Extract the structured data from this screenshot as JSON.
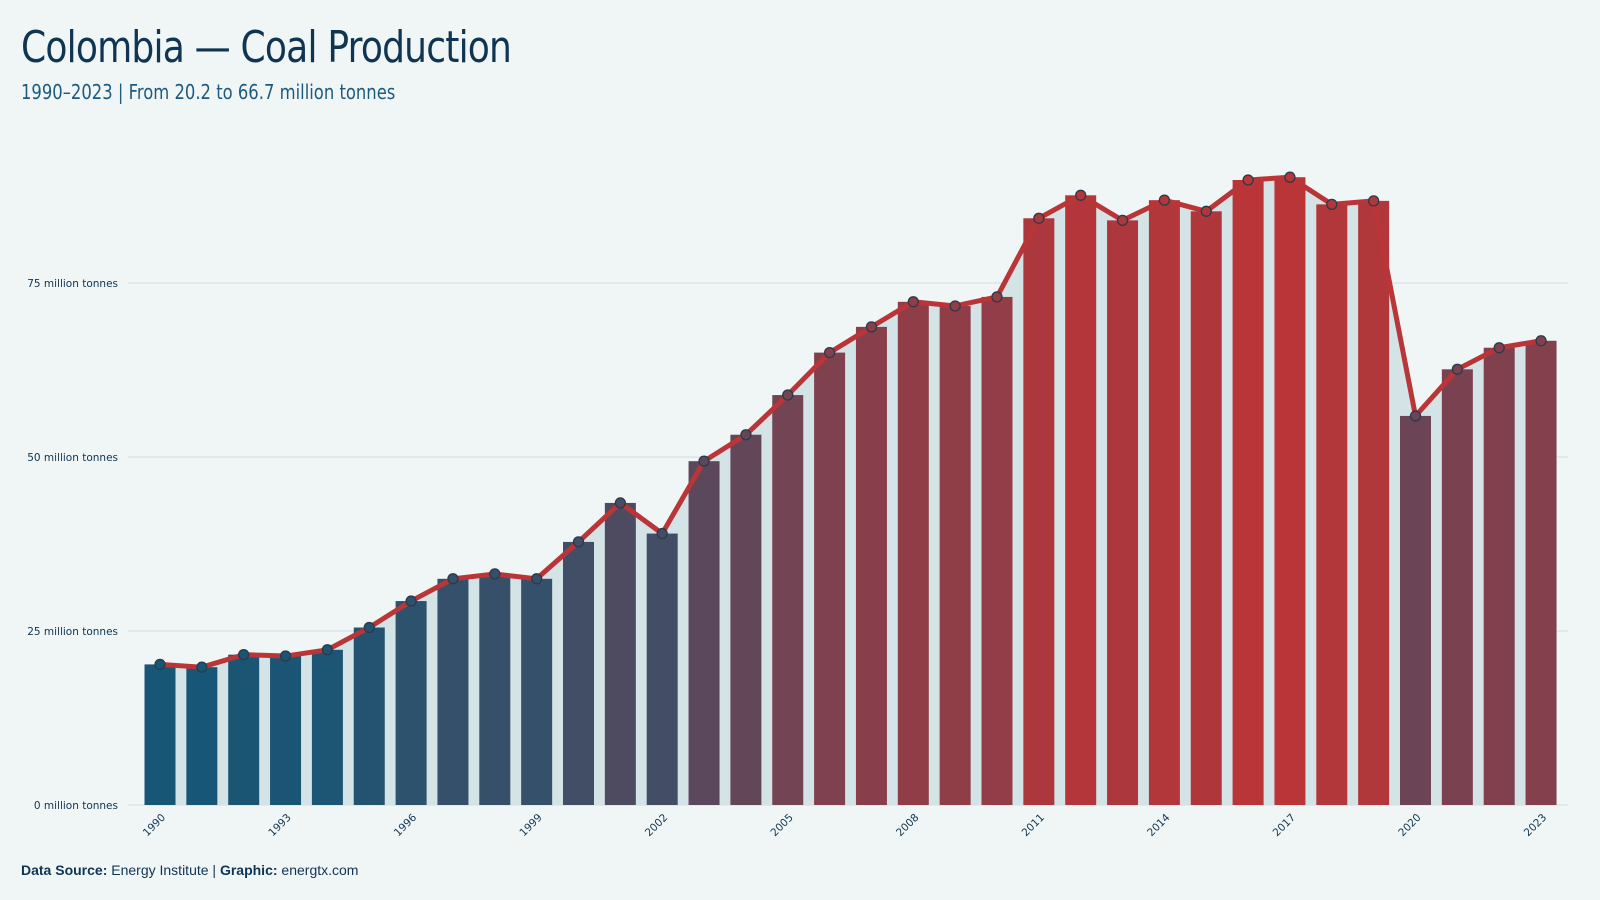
{
  "title": "Colombia — Coal Production",
  "subtitle": "1990–2023 | From 20.2 to 66.7 million tonnes",
  "footer": {
    "source_label": "Data Source:",
    "source_value": "Energy Institute",
    "separator": "|",
    "graphic_label": "Graphic:",
    "graphic_value": "energtx.com"
  },
  "colors": {
    "background": "#f0f6f6",
    "low": "#175676",
    "high": "#ba3538",
    "line": "#ba3538",
    "area": "#d3e3e6",
    "grid": "#d8e1e4"
  },
  "chart_data": {
    "type": "bar",
    "x": [
      1990,
      1991,
      1992,
      1993,
      1994,
      1995,
      1996,
      1997,
      1998,
      1999,
      2000,
      2001,
      2002,
      2003,
      2004,
      2005,
      2006,
      2007,
      2008,
      2009,
      2010,
      2011,
      2012,
      2013,
      2014,
      2015,
      2016,
      2017,
      2018,
      2019,
      2020,
      2021,
      2022,
      2023
    ],
    "values": [
      20.2,
      19.8,
      21.6,
      21.4,
      22.3,
      25.5,
      29.3,
      32.5,
      33.2,
      32.5,
      37.8,
      43.4,
      39.0,
      49.4,
      53.2,
      58.9,
      65.0,
      68.7,
      72.3,
      71.7,
      73.0,
      84.3,
      87.6,
      84.0,
      86.9,
      85.3,
      89.8,
      90.2,
      86.3,
      86.8,
      55.9,
      62.6,
      65.7,
      66.7
    ],
    "series": [
      {
        "type": "bar+line",
        "values_ref": "values"
      }
    ],
    "y_ticks": [
      {
        "value": 0,
        "label": "0 million tonnes"
      },
      {
        "value": 25,
        "label": "25 million tonnes"
      },
      {
        "value": 50,
        "label": "50 million tonnes"
      },
      {
        "value": 75,
        "label": "75 million tonnes"
      }
    ],
    "x_tick_labels": [
      1990,
      1993,
      1996,
      1999,
      2002,
      2005,
      2008,
      2011,
      2014,
      2017,
      2020,
      2023
    ],
    "ylim": [
      0,
      95
    ],
    "grid": true,
    "legend": "none"
  }
}
